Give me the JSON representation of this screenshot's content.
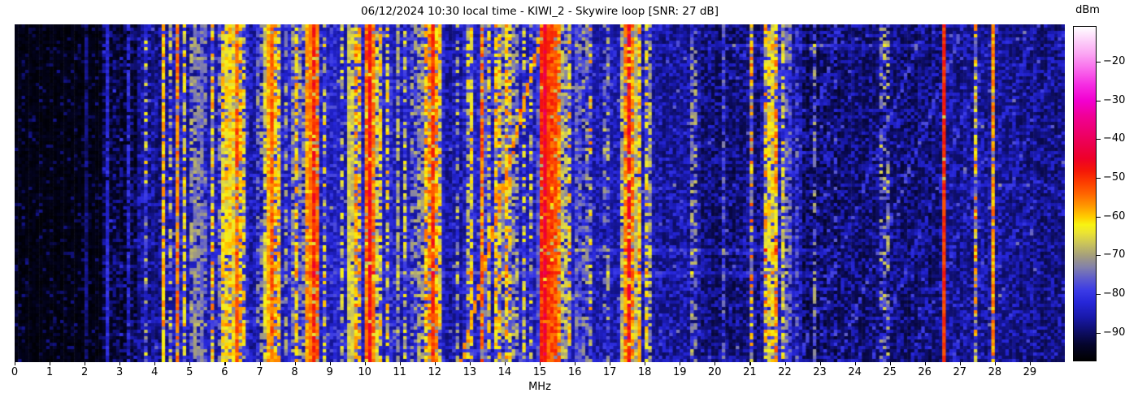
{
  "chart_data": {
    "type": "heatmap",
    "subtype": "radio-spectrogram-waterfall",
    "title": "06/12/2024 10:30 local time - KIWI_2 - Skywire loop [SNR: 27 dB]",
    "xlabel": "MHz",
    "x_range": [
      0,
      30
    ],
    "x_ticks": [
      0,
      1,
      2,
      3,
      4,
      5,
      6,
      7,
      8,
      9,
      10,
      11,
      12,
      13,
      14,
      15,
      16,
      17,
      18,
      19,
      20,
      21,
      22,
      23,
      24,
      25,
      26,
      27,
      28,
      29
    ],
    "y_axis": "time (no labels shown)",
    "grid": {
      "cols": 300,
      "rows": 104,
      "bin_mhz": 0.1
    },
    "seed": 1337,
    "colorbar": {
      "label": "dBm",
      "vmin": -97,
      "vmax": -11,
      "ticks": [
        {
          "v": -20,
          "label": "−20"
        },
        {
          "v": -30,
          "label": "−30"
        },
        {
          "v": -40,
          "label": "−40"
        },
        {
          "v": -50,
          "label": "−50"
        },
        {
          "v": -60,
          "label": "−60"
        },
        {
          "v": -70,
          "label": "−70"
        },
        {
          "v": -80,
          "label": "−80"
        },
        {
          "v": -90,
          "label": "−90"
        }
      ]
    },
    "colormap_stops": [
      [
        -97,
        "#000000"
      ],
      [
        -93,
        "#04042a"
      ],
      [
        -90,
        "#0c0c5e"
      ],
      [
        -86,
        "#1818a8"
      ],
      [
        -82,
        "#2626d8"
      ],
      [
        -79,
        "#3a3ae6"
      ],
      [
        -76,
        "#5c5ace"
      ],
      [
        -73,
        "#8280ab"
      ],
      [
        -70,
        "#a49e7d"
      ],
      [
        -67,
        "#c8c25c"
      ],
      [
        -64,
        "#ece432"
      ],
      [
        -62,
        "#f8f312"
      ],
      [
        -60,
        "#ffcc00"
      ],
      [
        -57,
        "#ff9500"
      ],
      [
        -54,
        "#ff6400"
      ],
      [
        -51,
        "#fc3c00"
      ],
      [
        -48,
        "#f41608"
      ],
      [
        -45,
        "#ee0028"
      ],
      [
        -42,
        "#ec0046"
      ],
      [
        -38,
        "#ee006e"
      ],
      [
        -34,
        "#f00096"
      ],
      [
        -30,
        "#f200d0"
      ],
      [
        -26,
        "#f52ce2"
      ],
      [
        -22,
        "#f969ec"
      ],
      [
        -18,
        "#fba5f3"
      ],
      [
        -14,
        "#fdd7fa"
      ],
      [
        -11,
        "#ffffff"
      ]
    ],
    "noise_floor_segments": [
      [
        0.0,
        2.55,
        -96.5
      ],
      [
        2.55,
        3.55,
        -92
      ],
      [
        3.55,
        4.2,
        -88
      ],
      [
        4.2,
        6.0,
        -85.5
      ],
      [
        6.0,
        6.7,
        -84
      ],
      [
        6.7,
        7.1,
        -86
      ],
      [
        7.1,
        9.4,
        -84
      ],
      [
        9.4,
        10.4,
        -85
      ],
      [
        10.4,
        12.3,
        -84.5
      ],
      [
        12.3,
        12.9,
        -86.5
      ],
      [
        12.9,
        16.0,
        -84.5
      ],
      [
        16.0,
        18.3,
        -85.5
      ],
      [
        18.3,
        19.6,
        -87
      ],
      [
        19.6,
        21.3,
        -89
      ],
      [
        21.3,
        22.5,
        -86.5
      ],
      [
        22.5,
        24.3,
        -89.5
      ],
      [
        24.3,
        26.4,
        -89
      ],
      [
        26.4,
        28.6,
        -87.5
      ],
      [
        28.6,
        30.0,
        -88
      ]
    ],
    "signal_bands": [
      [
        2.07,
        0.025,
        -84,
        0.9,
        3
      ],
      [
        2.64,
        0.03,
        -81,
        0.95,
        3
      ],
      [
        3.25,
        0.025,
        -82,
        0.8,
        4
      ],
      [
        3.6,
        0.03,
        -70,
        0.45,
        6
      ],
      [
        3.77,
        0.03,
        -62,
        0.3,
        7
      ],
      [
        4.0,
        0.03,
        -72,
        0.5,
        5
      ],
      [
        4.27,
        0.04,
        -58,
        0.85,
        4
      ],
      [
        4.47,
        0.03,
        -65,
        0.55,
        6
      ],
      [
        4.65,
        0.025,
        -55,
        0.8,
        4
      ],
      [
        4.85,
        0.03,
        -63,
        0.6,
        5
      ],
      [
        5.04,
        0.03,
        -70,
        0.5,
        5
      ],
      [
        5.2,
        0.035,
        -58,
        0.8,
        4
      ],
      [
        5.33,
        0.05,
        -72,
        0.9,
        4
      ],
      [
        5.48,
        0.03,
        -67,
        0.5,
        5
      ],
      [
        5.66,
        0.04,
        -60,
        0.6,
        6
      ],
      [
        5.82,
        0.03,
        -66,
        0.5,
        6
      ],
      [
        5.98,
        0.04,
        -58,
        0.8,
        5
      ],
      [
        6.1,
        0.05,
        -55,
        0.85,
        5
      ],
      [
        6.22,
        0.04,
        -58,
        0.75,
        5
      ],
      [
        6.33,
        0.05,
        -52,
        0.9,
        4
      ],
      [
        6.45,
        0.04,
        -59,
        0.7,
        5
      ],
      [
        6.57,
        0.04,
        -62,
        0.6,
        6
      ],
      [
        6.8,
        0.03,
        -70,
        0.45,
        6
      ],
      [
        7.0,
        0.04,
        -63,
        0.55,
        6
      ],
      [
        7.21,
        0.05,
        -56,
        0.85,
        5
      ],
      [
        7.31,
        0.05,
        -49,
        0.95,
        4
      ],
      [
        7.42,
        0.05,
        -57,
        0.8,
        5
      ],
      [
        7.56,
        0.04,
        -60,
        0.7,
        5
      ],
      [
        7.72,
        0.03,
        -65,
        0.5,
        6
      ],
      [
        7.92,
        0.05,
        -70,
        0.75,
        6
      ],
      [
        8.06,
        0.03,
        -60,
        0.7,
        5
      ],
      [
        8.2,
        0.04,
        -62,
        0.6,
        6
      ],
      [
        8.4,
        0.06,
        -53,
        0.9,
        4
      ],
      [
        8.52,
        0.06,
        -47,
        0.92,
        4
      ],
      [
        8.64,
        0.04,
        -54,
        0.85,
        5
      ],
      [
        8.83,
        0.03,
        -62,
        0.5,
        6
      ],
      [
        9.1,
        0.03,
        -63,
        0.45,
        7
      ],
      [
        9.35,
        0.03,
        -68,
        0.5,
        6
      ],
      [
        9.6,
        0.03,
        -47,
        0.95,
        3
      ],
      [
        9.75,
        0.04,
        -58,
        0.7,
        5
      ],
      [
        9.87,
        0.04,
        -59,
        0.65,
        6
      ],
      [
        10.05,
        0.04,
        -54,
        0.85,
        5
      ],
      [
        10.17,
        0.07,
        -46,
        0.93,
        4
      ],
      [
        10.3,
        0.04,
        -55,
        0.8,
        5
      ],
      [
        10.43,
        0.03,
        -60,
        0.6,
        6
      ],
      [
        10.68,
        0.04,
        -60,
        0.55,
        7
      ],
      [
        10.95,
        0.04,
        -70,
        0.8,
        5
      ],
      [
        11.15,
        0.03,
        -67,
        0.5,
        6
      ],
      [
        11.4,
        0.04,
        -63,
        0.55,
        6
      ],
      [
        11.6,
        0.04,
        -60,
        0.7,
        5
      ],
      [
        11.73,
        0.04,
        -58,
        0.75,
        5
      ],
      [
        11.86,
        0.04,
        -56,
        0.8,
        5
      ],
      [
        11.94,
        0.03,
        -49,
        0.9,
        4
      ],
      [
        12.06,
        0.05,
        -58,
        0.78,
        5
      ],
      [
        12.17,
        0.04,
        -61,
        0.65,
        6
      ],
      [
        12.3,
        0.03,
        -68,
        0.5,
        6
      ],
      [
        12.65,
        0.03,
        -71,
        0.4,
        6
      ],
      [
        12.92,
        0.04,
        -62,
        0.55,
        6
      ],
      [
        13.02,
        0.04,
        -59,
        0.7,
        5
      ],
      [
        13.2,
        0.03,
        -65,
        0.5,
        6
      ],
      [
        13.36,
        0.05,
        -54,
        0.85,
        5
      ],
      [
        13.58,
        0.04,
        -61,
        0.6,
        6
      ],
      [
        13.73,
        0.04,
        -58,
        0.7,
        5
      ],
      [
        13.87,
        0.04,
        -60,
        0.65,
        6
      ],
      [
        14.02,
        0.05,
        -57,
        0.75,
        5
      ],
      [
        14.16,
        0.04,
        -62,
        0.6,
        6
      ],
      [
        14.3,
        0.04,
        -60,
        0.6,
        6
      ],
      [
        14.55,
        0.03,
        -66,
        0.5,
        6
      ],
      [
        14.77,
        0.03,
        -64,
        0.5,
        6
      ],
      [
        15.05,
        0.05,
        -50,
        0.9,
        4
      ],
      [
        15.14,
        0.04,
        -44,
        0.9,
        4
      ],
      [
        15.2,
        0.035,
        -39,
        0.8,
        5
      ],
      [
        15.3,
        0.05,
        -45,
        0.95,
        4
      ],
      [
        15.42,
        0.05,
        -50,
        0.9,
        4
      ],
      [
        15.55,
        0.04,
        -56,
        0.8,
        5
      ],
      [
        15.7,
        0.04,
        -58,
        0.75,
        5
      ],
      [
        15.85,
        0.03,
        -62,
        0.6,
        6
      ],
      [
        16.1,
        0.07,
        -72,
        0.85,
        6
      ],
      [
        16.3,
        0.05,
        -68,
        0.6,
        7
      ],
      [
        16.42,
        0.05,
        -62,
        0.35,
        9
      ],
      [
        16.6,
        0.03,
        -72,
        0.5,
        6
      ],
      [
        16.9,
        0.04,
        -62,
        0.5,
        7
      ],
      [
        17.42,
        0.05,
        -55,
        0.85,
        5
      ],
      [
        17.55,
        0.05,
        -47,
        0.92,
        4
      ],
      [
        17.68,
        0.05,
        -54,
        0.85,
        5
      ],
      [
        17.82,
        0.05,
        -58,
        0.8,
        5
      ],
      [
        18.07,
        0.02,
        -56,
        0.6,
        5
      ],
      [
        18.15,
        0.06,
        -70,
        0.8,
        6
      ],
      [
        18.4,
        0.03,
        -73,
        0.45,
        6
      ],
      [
        18.8,
        0.03,
        -74,
        0.4,
        6
      ],
      [
        19.4,
        0.04,
        -62,
        0.5,
        7
      ],
      [
        19.8,
        0.03,
        -72,
        0.5,
        6
      ],
      [
        20.25,
        0.03,
        -77,
        0.6,
        5
      ],
      [
        20.6,
        0.03,
        -79,
        0.5,
        5
      ],
      [
        21.05,
        0.04,
        -59,
        0.5,
        7
      ],
      [
        21.45,
        0.04,
        -59,
        0.6,
        7
      ],
      [
        21.6,
        0.04,
        -52,
        0.8,
        5
      ],
      [
        21.75,
        0.05,
        -58,
        0.7,
        6
      ],
      [
        21.92,
        0.04,
        -61,
        0.6,
        6
      ],
      [
        22.1,
        0.06,
        -71,
        0.75,
        6
      ],
      [
        22.32,
        0.04,
        -74,
        0.6,
        6
      ],
      [
        22.85,
        0.03,
        -73,
        0.5,
        6
      ],
      [
        23.2,
        0.03,
        -65,
        0.3,
        8
      ],
      [
        23.42,
        0.03,
        -74,
        0.4,
        6
      ],
      [
        24.0,
        0.03,
        -80,
        0.4,
        5
      ],
      [
        24.8,
        0.04,
        -62,
        0.4,
        8
      ],
      [
        24.97,
        0.03,
        -68,
        0.4,
        7
      ],
      [
        25.3,
        0.03,
        -77,
        0.5,
        6
      ],
      [
        25.8,
        0.03,
        -79,
        0.5,
        6
      ],
      [
        26.55,
        0.025,
        -50,
        0.96,
        3
      ],
      [
        26.9,
        0.03,
        -74,
        0.5,
        6
      ],
      [
        27.45,
        0.04,
        -60,
        0.45,
        8
      ],
      [
        27.95,
        0.025,
        -57,
        0.85,
        4
      ],
      [
        28.3,
        0.03,
        -73,
        0.5,
        6
      ],
      [
        28.9,
        0.03,
        -78,
        0.5,
        6
      ],
      [
        29.3,
        0.03,
        -75,
        0.5,
        6
      ],
      [
        29.7,
        0.03,
        -79,
        0.5,
        6
      ]
    ],
    "chirp_sweeps": [
      [
        12.78,
        15.08,
        -57,
        0.92
      ],
      [
        22.4,
        26.0,
        -80,
        0.75
      ],
      [
        23.5,
        27.1,
        -79,
        0.7
      ],
      [
        24.5,
        28.1,
        -80,
        0.65
      ],
      [
        25.6,
        29.2,
        -81,
        0.6
      ],
      [
        20.8,
        23.6,
        -82,
        0.55
      ],
      [
        26.8,
        30.0,
        -81,
        0.55
      ]
    ],
    "horizontal_streaks": [
      [
        0.062,
        19.8,
        26.3,
        5
      ],
      [
        0.062,
        15.8,
        19.0,
        3
      ],
      [
        0.672,
        15.5,
        23.3,
        5
      ],
      [
        0.74,
        7.4,
        23.0,
        5
      ],
      [
        0.255,
        12.4,
        15.4,
        4
      ],
      [
        0.88,
        3.6,
        7.2,
        4
      ],
      [
        0.48,
        26.5,
        29.8,
        3
      ]
    ]
  }
}
